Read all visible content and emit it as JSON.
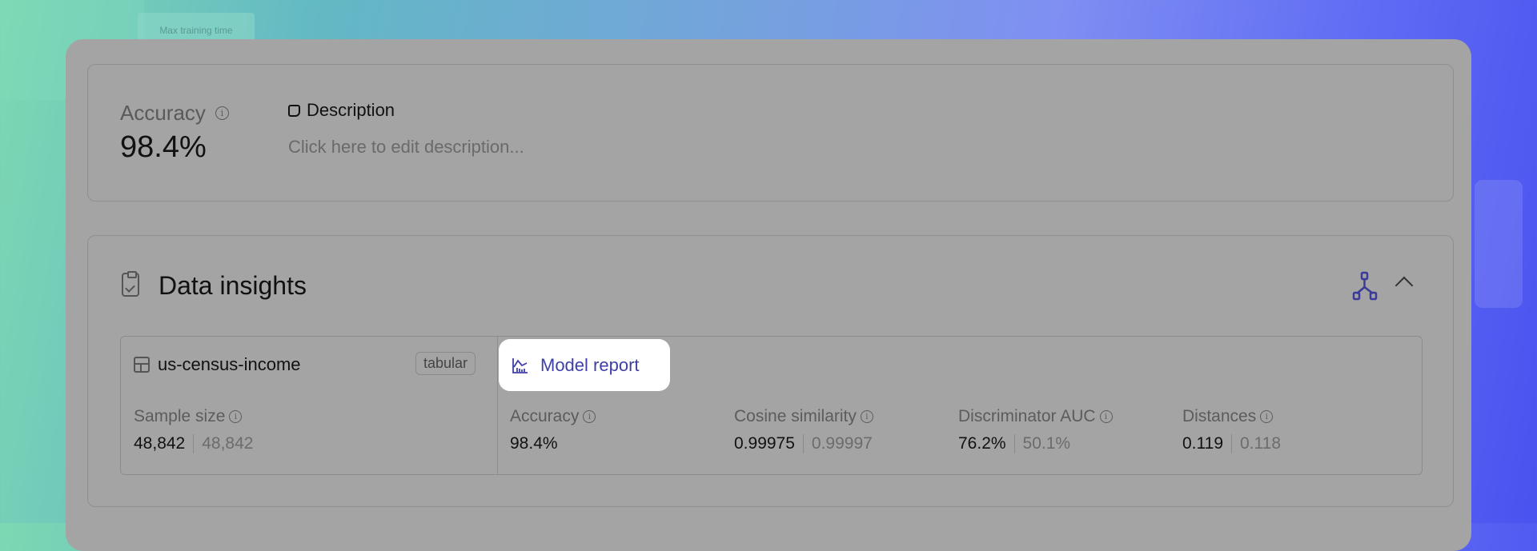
{
  "background": {
    "chip_label": "Max training time"
  },
  "summary": {
    "accuracy_label": "Accuracy",
    "accuracy_value": "98.4%",
    "description_title": "Description",
    "description_placeholder": "Click here to edit description..."
  },
  "insights": {
    "title": "Data insights",
    "dataset": {
      "name": "us-census-income",
      "type_tag": "tabular"
    },
    "model_report_label": "Model report",
    "accent_color": "#3f3fa8",
    "metrics": [
      {
        "label": "Sample size",
        "primary": "48,842",
        "secondary": "48,842"
      },
      {
        "label": "Accuracy",
        "primary": "98.4%",
        "secondary": null
      },
      {
        "label": "Cosine similarity",
        "primary": "0.99975",
        "secondary": "0.99997"
      },
      {
        "label": "Discriminator AUC",
        "primary": "76.2%",
        "secondary": "50.1%"
      },
      {
        "label": "Distances",
        "primary": "0.119",
        "secondary": "0.118"
      }
    ]
  }
}
